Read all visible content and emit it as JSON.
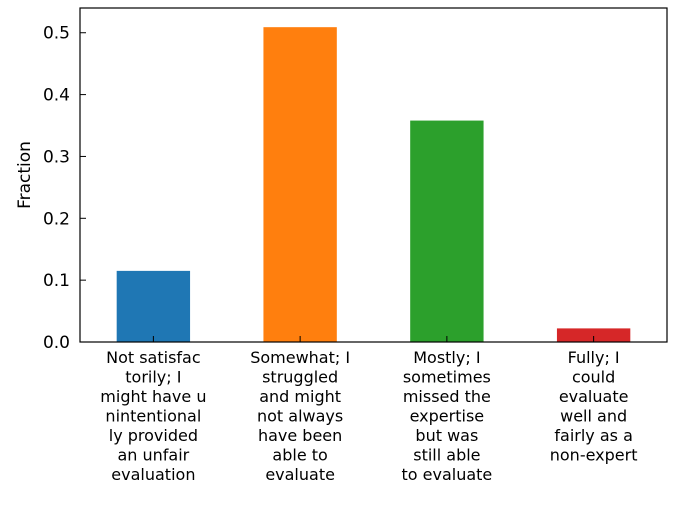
{
  "chart_data": {
    "type": "bar",
    "title": "",
    "xlabel": "",
    "ylabel": "Fraction",
    "ylim": [
      0,
      0.54
    ],
    "yticks": [
      "0.0",
      "0.1",
      "0.2",
      "0.3",
      "0.4",
      "0.5"
    ],
    "grid": false,
    "categories": [
      [
        "Not satisfac",
        "torily; I",
        "might have u",
        "nintentional",
        "ly provided",
        "an unfair",
        "evaluation"
      ],
      [
        "Somewhat; I",
        "struggled",
        "and might",
        "not always",
        "have been",
        "able to",
        "evaluate"
      ],
      [
        "Mostly; I",
        "sometimes",
        "missed the",
        "expertise",
        "but was",
        "still able",
        "to evaluate"
      ],
      [
        "Fully; I",
        "could",
        "evaluate",
        "well and",
        "fairly as a",
        "non-expert"
      ]
    ],
    "values": [
      0.115,
      0.509,
      0.358,
      0.022
    ],
    "colors": [
      "#1f77b4",
      "#ff7f0e",
      "#2ca02c",
      "#d62728"
    ]
  }
}
